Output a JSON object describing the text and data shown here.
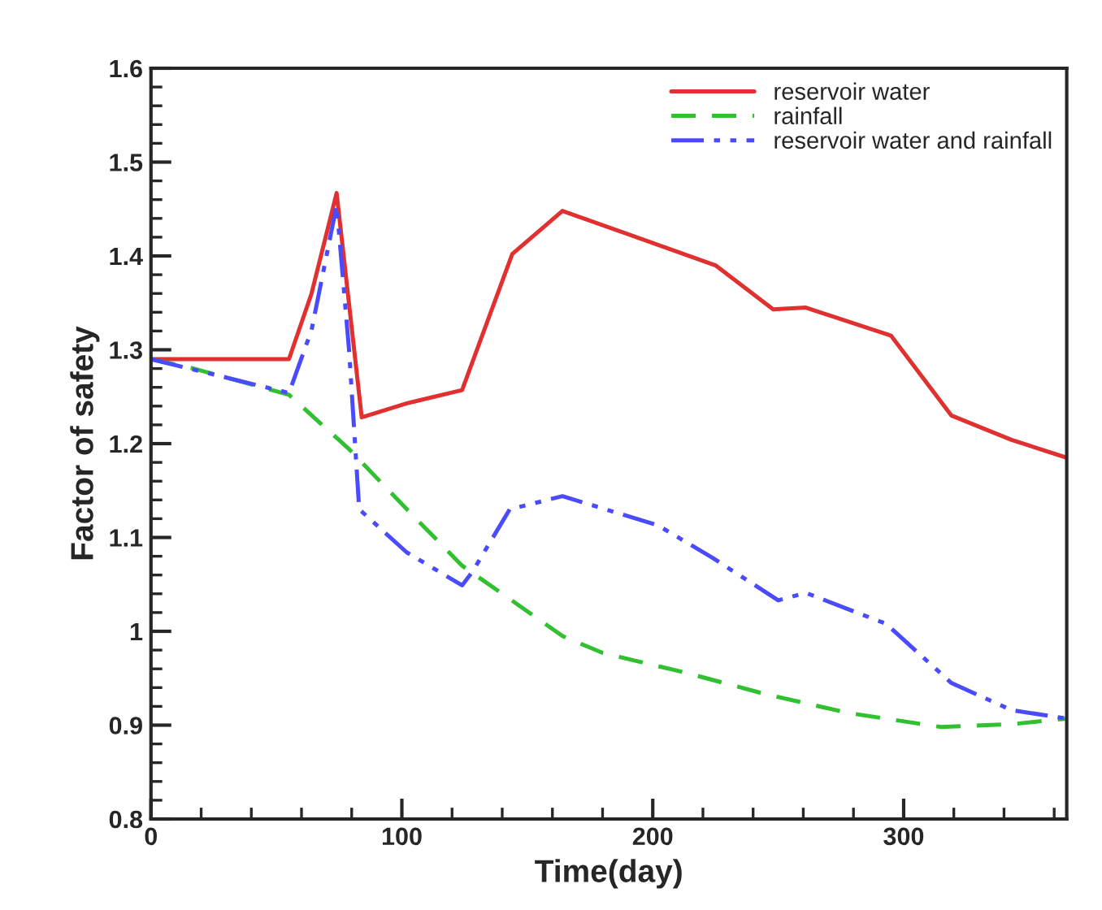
{
  "chart_data": {
    "type": "line",
    "xlabel": "Time(day)",
    "ylabel": "Factor of safety",
    "xlim": [
      0,
      365
    ],
    "xticks": [
      0,
      100,
      200,
      300
    ],
    "ylim": [
      0.8,
      1.6
    ],
    "yticks": [
      {
        "value": 0.8,
        "label": "0.8"
      },
      {
        "value": 0.9,
        "label": "0.9"
      },
      {
        "value": 1.0,
        "label": "1"
      },
      {
        "value": 1.1,
        "label": "1.1"
      },
      {
        "value": 1.2,
        "label": "1.2"
      },
      {
        "value": 1.3,
        "label": "1.3"
      },
      {
        "value": 1.4,
        "label": "1.4"
      },
      {
        "value": 1.5,
        "label": "1.5"
      },
      {
        "value": 1.6,
        "label": "1.6"
      }
    ],
    "grid": false,
    "legend": "top right",
    "series": [
      {
        "name": "reservoir water",
        "color": "#e03030",
        "line_style": "solid",
        "x": [
          0,
          55,
          64,
          74,
          84,
          102,
          124,
          144,
          164,
          225,
          248,
          261,
          295,
          319,
          343,
          365
        ],
        "values": [
          1.29,
          1.29,
          1.36,
          1.467,
          1.228,
          1.243,
          1.257,
          1.402,
          1.448,
          1.39,
          1.343,
          1.345,
          1.315,
          1.23,
          1.204,
          1.185
        ]
      },
      {
        "name": "rainfall",
        "color": "#30c030",
        "line_style": "dashed",
        "x": [
          0,
          17,
          55,
          79,
          102,
          124,
          164,
          180,
          213,
          245,
          278,
          315,
          343,
          365
        ],
        "values": [
          1.29,
          1.28,
          1.252,
          1.194,
          1.13,
          1.07,
          0.995,
          0.977,
          0.956,
          0.933,
          0.913,
          0.898,
          0.901,
          0.907
        ]
      },
      {
        "name": "reservoir water and rainfall",
        "color": "#4a4aff",
        "line_style": "dashdotdot",
        "x": [
          0,
          55,
          64,
          74,
          79,
          83,
          102,
          124,
          128,
          143,
          164,
          202,
          224,
          250,
          261,
          293,
          319,
          343,
          365
        ],
        "values": [
          1.29,
          1.254,
          1.321,
          1.454,
          1.298,
          1.13,
          1.084,
          1.049,
          1.063,
          1.13,
          1.144,
          1.113,
          1.078,
          1.033,
          1.041,
          1.008,
          0.945,
          0.916,
          0.907
        ]
      }
    ]
  }
}
